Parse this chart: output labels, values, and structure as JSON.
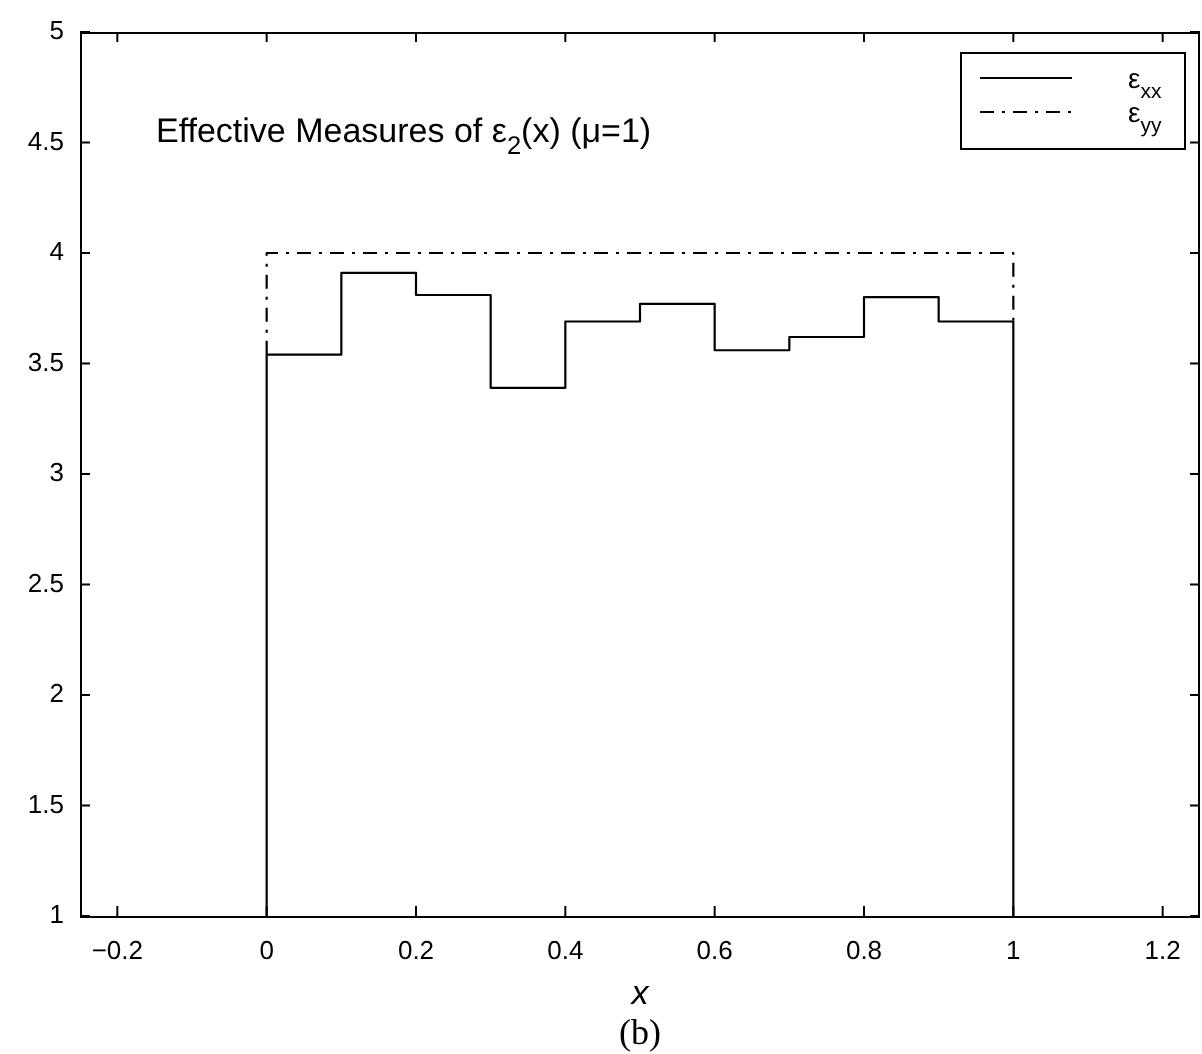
{
  "chart_data": {
    "type": "step",
    "title": "Effective Measures of ε$_{2}$(x) (μ=1)",
    "xlabel": "x",
    "annotations": [
      "(b)"
    ],
    "xlim": [
      -0.25,
      1.25
    ],
    "xticks": [
      -0.2,
      0,
      0.2,
      0.4,
      0.6,
      0.8,
      1,
      1.2
    ],
    "ylim": [
      1,
      5
    ],
    "yticks": [
      1,
      1.5,
      2,
      2.5,
      3,
      3.5,
      4,
      4.5,
      5
    ],
    "grid": false,
    "legend": "top right",
    "marker": "none",
    "series": [
      {
        "name": "ε$_{xx}$",
        "color": "#000000",
        "line_style": "solid",
        "x": [
          0,
          0,
          0.1,
          0.2,
          0.3,
          0.4,
          0.5,
          0.6,
          0.7,
          0.8,
          0.9,
          1
        ],
        "values": [
          1,
          3.54,
          3.91,
          3.81,
          3.39,
          3.69,
          3.77,
          3.56,
          3.62,
          3.8,
          3.69,
          1
        ]
      },
      {
        "name": "ε$_{yy}$",
        "color": "#000000",
        "line_style": "dashdot",
        "x": [
          0,
          0,
          1,
          1
        ],
        "values": [
          3.54,
          4,
          4,
          3.69
        ]
      }
    ]
  }
}
